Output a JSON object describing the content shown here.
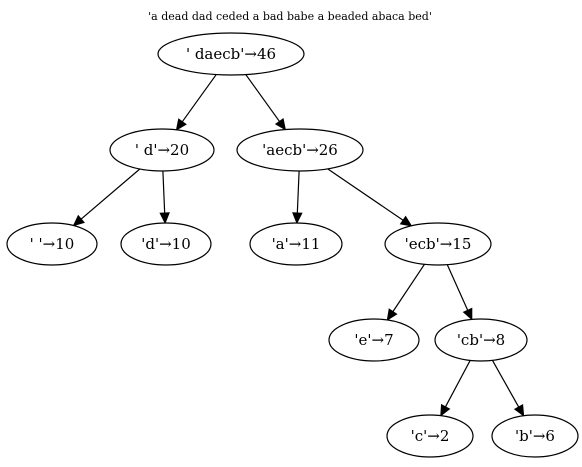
{
  "diagram": {
    "title": "'a dead dad ceded a bad babe a beaded abaca bed'",
    "nodes": [
      {
        "id": "root",
        "label": "' daecb'→46"
      },
      {
        "id": "n_d_space",
        "label": "' d'→20"
      },
      {
        "id": "n_aecb",
        "label": "'aecb'→26"
      },
      {
        "id": "n_space",
        "label": "' '→10"
      },
      {
        "id": "n_d",
        "label": "'d'→10"
      },
      {
        "id": "n_a",
        "label": "'a'→11"
      },
      {
        "id": "n_ecb",
        "label": "'ecb'→15"
      },
      {
        "id": "n_e",
        "label": "'e'→7"
      },
      {
        "id": "n_cb",
        "label": "'cb'→8"
      },
      {
        "id": "n_c",
        "label": "'c'→2"
      },
      {
        "id": "n_b",
        "label": "'b'→6"
      }
    ],
    "edges": [
      {
        "from": "root",
        "to": "n_d_space"
      },
      {
        "from": "root",
        "to": "n_aecb"
      },
      {
        "from": "n_d_space",
        "to": "n_space"
      },
      {
        "from": "n_d_space",
        "to": "n_d"
      },
      {
        "from": "n_aecb",
        "to": "n_a"
      },
      {
        "from": "n_aecb",
        "to": "n_ecb"
      },
      {
        "from": "n_ecb",
        "to": "n_e"
      },
      {
        "from": "n_ecb",
        "to": "n_cb"
      },
      {
        "from": "n_cb",
        "to": "n_c"
      },
      {
        "from": "n_cb",
        "to": "n_b"
      }
    ]
  }
}
